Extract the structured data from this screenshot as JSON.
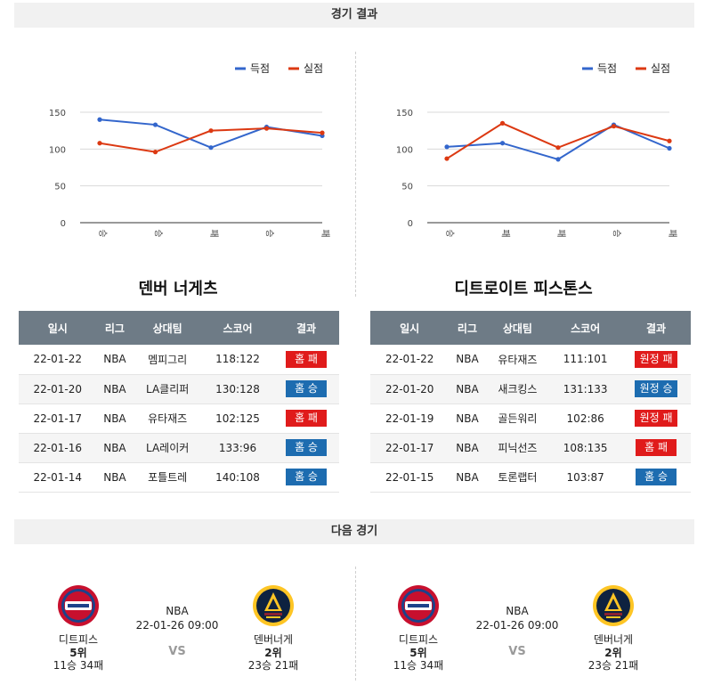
{
  "sections": {
    "results": "경기 결과",
    "next": "다음 경기"
  },
  "legend": {
    "scored": "득점",
    "conceded": "실점"
  },
  "colors": {
    "scored": "#3366cc",
    "conceded": "#dc3912",
    "win": "#1d6cb0",
    "loss": "#e01b1b",
    "header": "#6e7b86"
  },
  "chart_data": [
    {
      "type": "line",
      "categories": [
        "승",
        "승",
        "패",
        "승",
        "패"
      ],
      "series": [
        {
          "name": "득점",
          "values": [
            140,
            133,
            102,
            130,
            118
          ]
        },
        {
          "name": "실점",
          "values": [
            108,
            96,
            125,
            128,
            122
          ]
        }
      ],
      "ylim": [
        0,
        150
      ],
      "yticks": [
        "0",
        "50",
        "100",
        "150"
      ],
      "legend_position": "top-right",
      "grid": true
    },
    {
      "type": "line",
      "categories": [
        "승",
        "패",
        "패",
        "승",
        "패"
      ],
      "series": [
        {
          "name": "득점",
          "values": [
            103,
            108,
            86,
            133,
            101
          ]
        },
        {
          "name": "실점",
          "values": [
            87,
            135,
            102,
            131,
            111
          ]
        }
      ],
      "ylim": [
        0,
        150
      ],
      "yticks": [
        "0",
        "50",
        "100",
        "150"
      ],
      "legend_position": "top-right",
      "grid": true
    }
  ],
  "headers": [
    "일시",
    "리그",
    "상대팀",
    "스코어",
    "결과"
  ],
  "teams": [
    {
      "name": "덴버 너게츠",
      "games": [
        {
          "date": "22-01-22",
          "league": "NBA",
          "opponent": "멤피그리",
          "score": "118:122",
          "result": "홈 패",
          "outcome": "loss"
        },
        {
          "date": "22-01-20",
          "league": "NBA",
          "opponent": "LA클리퍼",
          "score": "130:128",
          "result": "홈 승",
          "outcome": "win"
        },
        {
          "date": "22-01-17",
          "league": "NBA",
          "opponent": "유타재즈",
          "score": "102:125",
          "result": "홈 패",
          "outcome": "loss"
        },
        {
          "date": "22-01-16",
          "league": "NBA",
          "opponent": "LA레이커",
          "score": "133:96",
          "result": "홈 승",
          "outcome": "win"
        },
        {
          "date": "22-01-14",
          "league": "NBA",
          "opponent": "포틀트레",
          "score": "140:108",
          "result": "홈 승",
          "outcome": "win"
        }
      ]
    },
    {
      "name": "디트로이트 피스톤스",
      "games": [
        {
          "date": "22-01-22",
          "league": "NBA",
          "opponent": "유타재즈",
          "score": "111:101",
          "result": "원정 패",
          "outcome": "loss"
        },
        {
          "date": "22-01-20",
          "league": "NBA",
          "opponent": "새크킹스",
          "score": "131:133",
          "result": "원정 승",
          "outcome": "win"
        },
        {
          "date": "22-01-19",
          "league": "NBA",
          "opponent": "골든워리",
          "score": "102:86",
          "result": "원정 패",
          "outcome": "loss"
        },
        {
          "date": "22-01-17",
          "league": "NBA",
          "opponent": "피닉선즈",
          "score": "108:135",
          "result": "홈 패",
          "outcome": "loss"
        },
        {
          "date": "22-01-15",
          "league": "NBA",
          "opponent": "토론랩터",
          "score": "103:87",
          "result": "홈 승",
          "outcome": "win"
        }
      ]
    }
  ],
  "matches": [
    {
      "home": {
        "name": "디트피스",
        "rank": "5위",
        "record": "11승 34패",
        "logo_icon": "pistons-logo-icon"
      },
      "league": "NBA",
      "datetime": "22-01-26 09:00",
      "vs": "VS",
      "away": {
        "name": "덴버너게",
        "rank": "2위",
        "record": "23승 21패",
        "logo_icon": "nuggets-logo-icon"
      }
    },
    {
      "home": {
        "name": "디트피스",
        "rank": "5위",
        "record": "11승 34패",
        "logo_icon": "pistons-logo-icon"
      },
      "league": "NBA",
      "datetime": "22-01-26 09:00",
      "vs": "VS",
      "away": {
        "name": "덴버너게",
        "rank": "2위",
        "record": "23승 21패",
        "logo_icon": "nuggets-logo-icon"
      }
    }
  ]
}
